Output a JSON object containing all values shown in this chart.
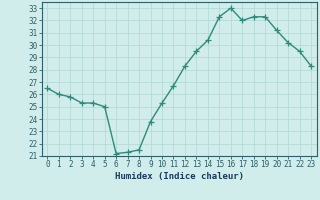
{
  "x": [
    0,
    1,
    2,
    3,
    4,
    5,
    6,
    7,
    8,
    9,
    10,
    11,
    12,
    13,
    14,
    15,
    16,
    17,
    18,
    19,
    20,
    21,
    22,
    23
  ],
  "y": [
    26.5,
    26.0,
    25.8,
    25.3,
    25.3,
    25.0,
    21.2,
    21.3,
    21.5,
    23.8,
    25.3,
    26.7,
    28.3,
    29.5,
    30.4,
    32.3,
    33.0,
    32.0,
    32.3,
    32.3,
    31.2,
    30.2,
    29.5,
    28.3
  ],
  "line_color": "#2e8b7a",
  "marker": "+",
  "marker_size": 4,
  "bg_color": "#d0eceb",
  "grid_color": "#b0d8d4",
  "xlabel": "Humidex (Indice chaleur)",
  "xlim": [
    -0.5,
    23.5
  ],
  "ylim": [
    21,
    33.5
  ],
  "yticks": [
    21,
    22,
    23,
    24,
    25,
    26,
    27,
    28,
    29,
    30,
    31,
    32,
    33
  ],
  "xticks": [
    0,
    1,
    2,
    3,
    4,
    5,
    6,
    7,
    8,
    9,
    10,
    11,
    12,
    13,
    14,
    15,
    16,
    17,
    18,
    19,
    20,
    21,
    22,
    23
  ],
  "tick_color": "#2e5f6b",
  "xlabel_color": "#1a3a5c",
  "spine_color": "#2e5f6b"
}
